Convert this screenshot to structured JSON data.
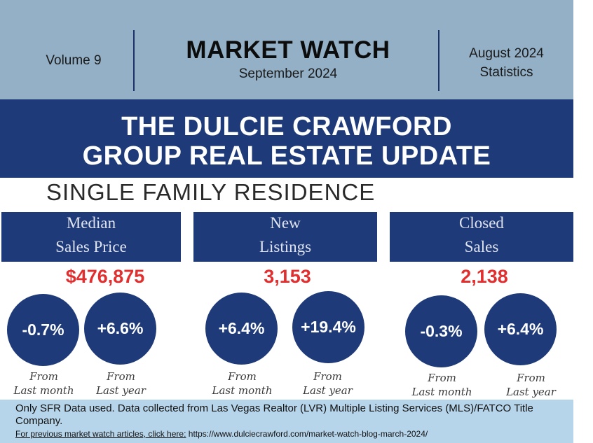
{
  "header": {
    "volume": "Volume 9",
    "title": "MARKET WATCH",
    "subtitle": "September 2024",
    "stats_line1": "August 2024",
    "stats_line2": "Statistics"
  },
  "banner": {
    "line1": "THE DULCIE CRAWFORD",
    "line2": "GROUP REAL ESTATE UPDATE"
  },
  "section_title": "SINGLE FAMILY RESIDENCE",
  "metrics": [
    {
      "label_line1": "Median",
      "label_line2": "Sales Price",
      "value": "$476,875",
      "month_change": "-0.7%",
      "year_change": "+6.6%",
      "month_note_1": "From",
      "month_note_2": "Last month",
      "year_note_1": "From",
      "year_note_2": "Last year"
    },
    {
      "label_line1": "New",
      "label_line2": "Listings",
      "value": "3,153",
      "month_change": "+6.4%",
      "year_change": "+19.4%",
      "month_note_1": "From",
      "month_note_2": "Last month",
      "year_note_1": "From",
      "year_note_2": "Last year"
    },
    {
      "label_line1": "Closed",
      "label_line2": "Sales",
      "value": "2,138",
      "month_change": "-0.3%",
      "year_change": "+6.4%",
      "month_note_1": "From",
      "month_note_2": "Last month",
      "year_note_1": "From",
      "year_note_2": "Last year"
    }
  ],
  "footer": {
    "disclaimer": "Only SFR Data used. Data collected from Las Vegas Realtor (LVR) Multiple Listing Services (MLS)/FATCO Title Company.",
    "link_label": "For previous market watch articles, click here:",
    "link_url": "https://www.dulciecrawford.com/market-watch-blog-march-2024/"
  },
  "colors": {
    "header_bg": "#93b0c6",
    "navy": "#1e3a78",
    "value_red": "#e12f2f",
    "footer_bg": "#b7d5ea"
  }
}
